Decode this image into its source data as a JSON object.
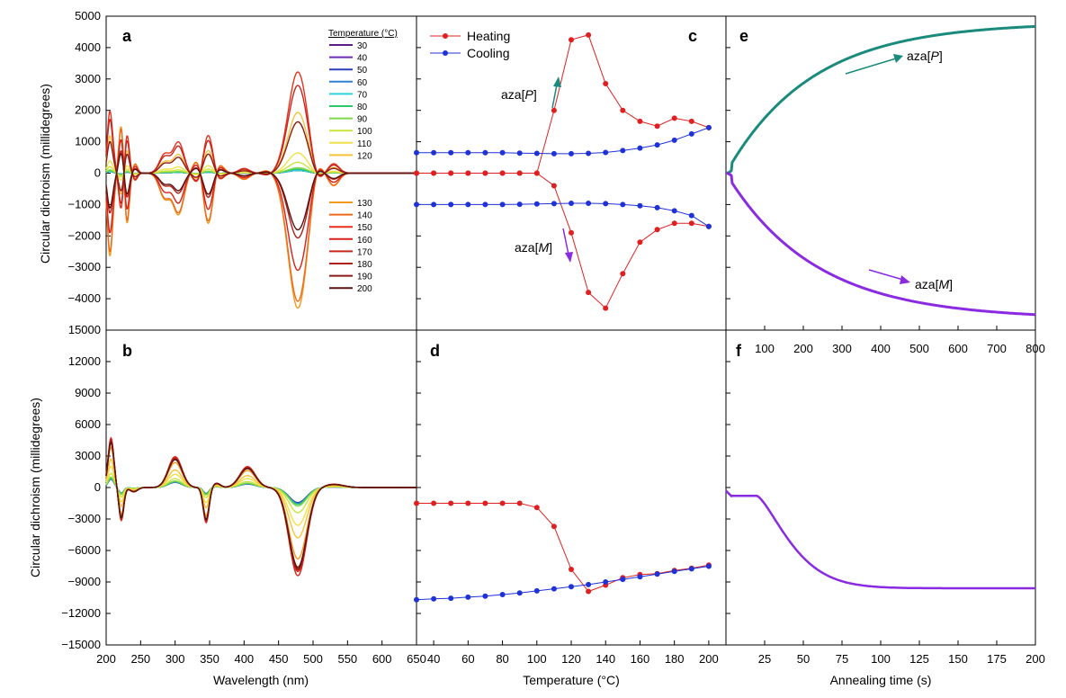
{
  "chart_data": [
    {
      "panel": "a",
      "type": "line",
      "xlabel": "",
      "ylabel": "Circular dichroism (millidegrees)",
      "xlim": [
        200,
        650
      ],
      "ylim": [
        -5000,
        5000
      ],
      "yticks": [
        -4000,
        -3000,
        -2000,
        -1000,
        0,
        1000,
        2000,
        3000,
        4000,
        5000
      ],
      "legend_title": "Temperature (°C)",
      "legend_location": "top-right",
      "series": [
        {
          "name": "30",
          "color": "#5b1a8c",
          "amp": 0.02
        },
        {
          "name": "40",
          "color": "#6f2ab8",
          "amp": 0.02
        },
        {
          "name": "50",
          "color": "#2a3fb8",
          "amp": 0.02
        },
        {
          "name": "60",
          "color": "#2f7fd6",
          "amp": 0.02
        },
        {
          "name": "70",
          "color": "#2fd0d8",
          "amp": 0.02
        },
        {
          "name": "80",
          "color": "#2fc86a",
          "amp": 0.03
        },
        {
          "name": "90",
          "color": "#7ed84a",
          "amp": 0.04
        },
        {
          "name": "100",
          "color": "#c8e63c",
          "amp": 0.08
        },
        {
          "name": "110",
          "color": "#f2e04a",
          "amp": 0.15
        },
        {
          "name": "120",
          "color": "#f5c23a",
          "amp": 0.45
        },
        {
          "name": "130",
          "color": "#f39a1e",
          "amp": -1.0
        },
        {
          "name": "140",
          "color": "#ee6a1a",
          "amp": -0.95
        },
        {
          "name": "150",
          "color": "#e8301c",
          "amp": 0.75
        },
        {
          "name": "160",
          "color": "#d8201a",
          "amp": -0.72
        },
        {
          "name": "170",
          "color": "#c8261c",
          "amp": 0.65
        },
        {
          "name": "180",
          "color": "#b02018",
          "amp": -0.48
        },
        {
          "name": "190",
          "color": "#8c1a14",
          "amp": 0.38
        },
        {
          "name": "200",
          "color": "#5a1410",
          "amp": -0.42
        }
      ],
      "peaks": [
        {
          "x": 205,
          "y": 2400
        },
        {
          "x": 210,
          "y": 600
        },
        {
          "x": 222,
          "y": -1600
        },
        {
          "x": 230,
          "y": 1700
        },
        {
          "x": 242,
          "y": -300
        },
        {
          "x": 285,
          "y": 800
        },
        {
          "x": 305,
          "y": 1300
        },
        {
          "x": 335,
          "y": -600
        },
        {
          "x": 348,
          "y": 1900
        },
        {
          "x": 360,
          "y": -500
        },
        {
          "x": 400,
          "y": 200
        },
        {
          "x": 435,
          "y": -100
        },
        {
          "x": 478,
          "y": 4300
        },
        {
          "x": 505,
          "y": -600
        },
        {
          "x": 530,
          "y": 400
        }
      ]
    },
    {
      "panel": "b",
      "type": "line",
      "xlabel": "Wavelength (nm)",
      "ylabel": "Circular dichroism (millidegrees)",
      "xlim": [
        200,
        650
      ],
      "ylim": [
        -15000,
        15000
      ],
      "xticks": [
        200,
        250,
        300,
        350,
        400,
        450,
        500,
        550,
        600,
        650
      ],
      "yticks": [
        -15000,
        -12000,
        -9000,
        -6000,
        -3000,
        0,
        3000,
        6000,
        9000,
        12000,
        15000
      ]
    },
    {
      "panel": "c",
      "type": "line",
      "xlabel": "",
      "xlim": [
        30,
        210
      ],
      "ylim": [
        -5000,
        5000
      ],
      "legend": [
        {
          "name": "Heating",
          "color": "#e02020"
        },
        {
          "name": "Cooling",
          "color": "#1f32d8"
        }
      ],
      "annotations": [
        "aza[P]",
        "aza[M]"
      ],
      "x": [
        30,
        40,
        50,
        60,
        70,
        80,
        90,
        100,
        110,
        120,
        130,
        140,
        150,
        160,
        170,
        180,
        190,
        200
      ],
      "series": [
        {
          "name": "Heating P",
          "color": "#e02020",
          "values": [
            0,
            0,
            0,
            0,
            0,
            0,
            0,
            0,
            2000,
            4250,
            4400,
            2850,
            2000,
            1650,
            1500,
            1750,
            1650,
            1450
          ]
        },
        {
          "name": "Heating M",
          "color": "#e02020",
          "values": [
            0,
            0,
            0,
            0,
            0,
            0,
            0,
            0,
            -400,
            -1900,
            -3800,
            -4300,
            -3200,
            -2200,
            -1800,
            -1600,
            -1600,
            -1700
          ]
        },
        {
          "name": "Cooling P",
          "color": "#1f32d8",
          "values": [
            650,
            650,
            650,
            650,
            650,
            650,
            640,
            630,
            620,
            620,
            630,
            660,
            720,
            800,
            900,
            1050,
            1250,
            1450
          ]
        },
        {
          "name": "Cooling M",
          "color": "#1f32d8",
          "values": [
            -1000,
            -1000,
            -1000,
            -1000,
            -1000,
            -1000,
            -990,
            -980,
            -970,
            -960,
            -960,
            -970,
            -1000,
            -1040,
            -1100,
            -1200,
            -1350,
            -1700
          ]
        }
      ]
    },
    {
      "panel": "d",
      "type": "line",
      "xlabel": "Temperature (°C)",
      "xlim": [
        30,
        210
      ],
      "ylim": [
        -15000,
        15000
      ],
      "xticks": [
        40,
        60,
        80,
        100,
        120,
        140,
        160,
        180,
        200
      ],
      "x": [
        30,
        40,
        50,
        60,
        70,
        80,
        90,
        100,
        110,
        120,
        130,
        140,
        150,
        160,
        170,
        180,
        190,
        200
      ],
      "series": [
        {
          "name": "Heating",
          "color": "#e02020",
          "values": [
            -1500,
            -1500,
            -1500,
            -1500,
            -1500,
            -1500,
            -1500,
            -1900,
            -3700,
            -7800,
            -9900,
            -9300,
            -8600,
            -8300,
            -8200,
            -7900,
            -7700,
            -7400
          ]
        },
        {
          "name": "Cooling",
          "color": "#1f32d8",
          "values": [
            -10700,
            -10600,
            -10550,
            -10450,
            -10350,
            -10200,
            -10050,
            -9850,
            -9650,
            -9450,
            -9250,
            -9000,
            -8750,
            -8500,
            -8250,
            -8000,
            -7750,
            -7500
          ]
        }
      ]
    },
    {
      "panel": "e",
      "type": "scatter",
      "xlim": [
        0,
        800
      ],
      "ylim": [
        -5000,
        5000
      ],
      "xticks_top": [
        100,
        200,
        300,
        400,
        500,
        600,
        700,
        800
      ],
      "annotations": [
        "aza[P]",
        "aza[M]"
      ],
      "series": [
        {
          "name": "aza[P]",
          "color": "#1a8a7c",
          "asymptote": 4800,
          "tau": 220
        },
        {
          "name": "aza[M]",
          "color": "#8a2be2",
          "asymptote": -4650,
          "tau": 230
        }
      ]
    },
    {
      "panel": "f",
      "type": "scatter",
      "xlabel": "Annealing time (s)",
      "xlim": [
        0,
        200
      ],
      "ylim": [
        -15000,
        15000
      ],
      "xticks": [
        25,
        50,
        75,
        100,
        125,
        150,
        175,
        200
      ],
      "series": [
        {
          "name": "aza",
          "color": "#8a2be2",
          "start": -800,
          "plateau": -9600
        }
      ]
    }
  ],
  "labels": {
    "panel_a": "a",
    "panel_b": "b",
    "panel_c": "c",
    "panel_d": "d",
    "panel_e": "e",
    "panel_f": "f",
    "ylabel_top": "Circular dichroism (millidegrees)",
    "ylabel_bottom": "Circular dichroism (millidegrees)",
    "xlabel_wavelength": "Wavelength (nm)",
    "xlabel_temperature": "Temperature (°C)",
    "xlabel_time": "Annealing time (s)",
    "legend_title": "Temperature (°C)",
    "heating": "Heating",
    "cooling": "Cooling",
    "aza": "aza",
    "aza_P_letter": "P",
    "aza_M_letter": "M",
    "bracket_open": "[",
    "bracket_close": "]"
  },
  "colors": {
    "heating": "#e02020",
    "cooling": "#1f32d8",
    "teal": "#1a8a7c",
    "purple": "#8a2be2"
  }
}
